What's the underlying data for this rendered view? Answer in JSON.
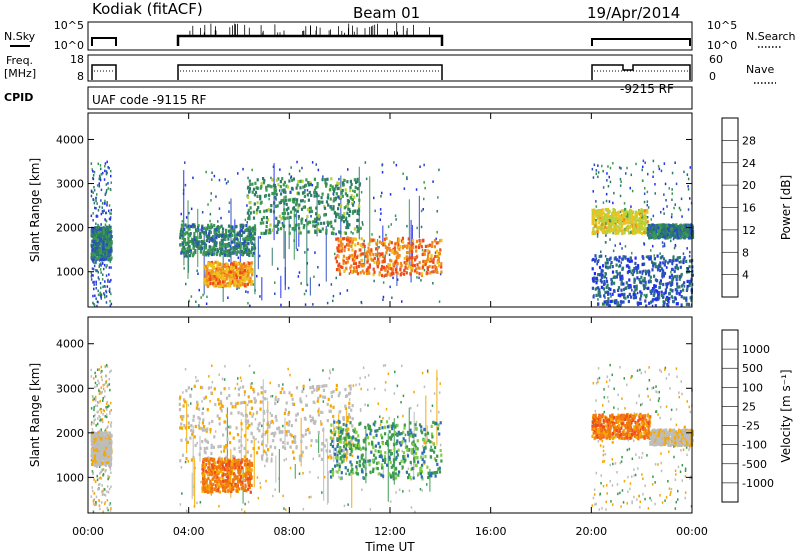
{
  "header": {
    "site": "Kodiak (fitACF)",
    "beam": "Beam 01",
    "date": "19/Apr/2014"
  },
  "panels": {
    "nsky": {
      "left_label": "N.Sky",
      "left_ticks": [
        "10^5",
        "10^0"
      ],
      "right_ticks": [
        "10^5",
        "10^0"
      ],
      "right_label": "N.Search"
    },
    "freq": {
      "left_label_1": "Freq.",
      "left_label_2": "[MHz]",
      "left_ticks": [
        "18",
        "8"
      ],
      "right_ticks": [
        "60",
        "0"
      ],
      "right_label": "Nave"
    },
    "cpid": {
      "label": "CPID",
      "program_1": "UAF code -9115 RF",
      "program_2": "-9215 RF"
    }
  },
  "colors": {
    "power": [
      "#1f2df0",
      "#2a4fc0",
      "#2e7a6a",
      "#3a9a50",
      "#b8d23a",
      "#f0c020",
      "#f08a1c",
      "#ee4a1c",
      "#e81818"
    ],
    "velocity": [
      "#e01818",
      "#f04a1c",
      "#f07a10",
      "#f6a800",
      "#bdbdbd",
      "#7fd040",
      "#3a9a50",
      "#2f6eb0",
      "#2b3fc8"
    ]
  },
  "chart_data": [
    {
      "type": "heatmap",
      "title": "Power",
      "ylabel": "Slant Range [km]",
      "ylim": [
        200,
        4600
      ],
      "yticks": [
        "1000",
        "2000",
        "3000",
        "4000"
      ],
      "colorbar": {
        "label": "Power [dB]",
        "ticks": [
          "4",
          "8",
          "12",
          "16",
          "20",
          "24",
          "28"
        ],
        "range": [
          0,
          32
        ]
      },
      "x": [
        "00:00",
        "04:00",
        "08:00",
        "12:00",
        "16:00",
        "20:00",
        "00:00"
      ],
      "regions": [
        {
          "x0": 0.1,
          "x1": 0.9,
          "r0": 1300,
          "r1": 2050,
          "value": 9
        },
        {
          "x0": 3.6,
          "x1": 6.6,
          "r0": 1400,
          "r1": 2100,
          "value": 10
        },
        {
          "x0": 4.6,
          "x1": 6.5,
          "r0": 700,
          "r1": 1250,
          "value": 22
        },
        {
          "x0": 6.3,
          "x1": 10.8,
          "r0": 1900,
          "r1": 3150,
          "value": 11
        },
        {
          "x0": 9.8,
          "x1": 14.0,
          "r0": 950,
          "r1": 1800,
          "value": 24
        },
        {
          "x0": 20.0,
          "x1": 22.2,
          "r0": 1900,
          "r1": 2450,
          "value": 18
        },
        {
          "x0": 22.2,
          "x1": 24.0,
          "r0": 1800,
          "r1": 2100,
          "value": 9
        },
        {
          "x0": 20.0,
          "x1": 24.0,
          "r0": 250,
          "r1": 1400,
          "value": 6
        }
      ]
    },
    {
      "type": "heatmap",
      "title": "Velocity",
      "xlabel": "Time UT",
      "ylabel": "Slant Range [km]",
      "ylim": [
        200,
        4600
      ],
      "yticks": [
        "1000",
        "2000",
        "3000",
        "4000"
      ],
      "colorbar": {
        "label": "Velocity [m s⁻¹]",
        "ticks": [
          "-1000",
          "-500",
          "-100",
          "-25",
          "25",
          "100",
          "500",
          "1000"
        ]
      },
      "x": [
        "00:00",
        "04:00",
        "08:00",
        "12:00",
        "16:00",
        "20:00",
        "00:00"
      ],
      "regions": [
        {
          "x0": 0.1,
          "x1": 0.9,
          "r0": 1300,
          "r1": 2050,
          "value": 0
        },
        {
          "x0": 3.6,
          "x1": 10.5,
          "r0": 1400,
          "r1": 3100,
          "value": 0
        },
        {
          "x0": 4.5,
          "x1": 6.5,
          "r0": 700,
          "r1": 1450,
          "value": -300
        },
        {
          "x0": 9.6,
          "x1": 14.0,
          "r0": 1000,
          "r1": 2300,
          "value": 300
        },
        {
          "x0": 20.0,
          "x1": 22.3,
          "r0": 1900,
          "r1": 2450,
          "value": -300
        },
        {
          "x0": 22.3,
          "x1": 24.0,
          "r0": 1750,
          "r1": 2100,
          "value": 0
        }
      ]
    }
  ]
}
